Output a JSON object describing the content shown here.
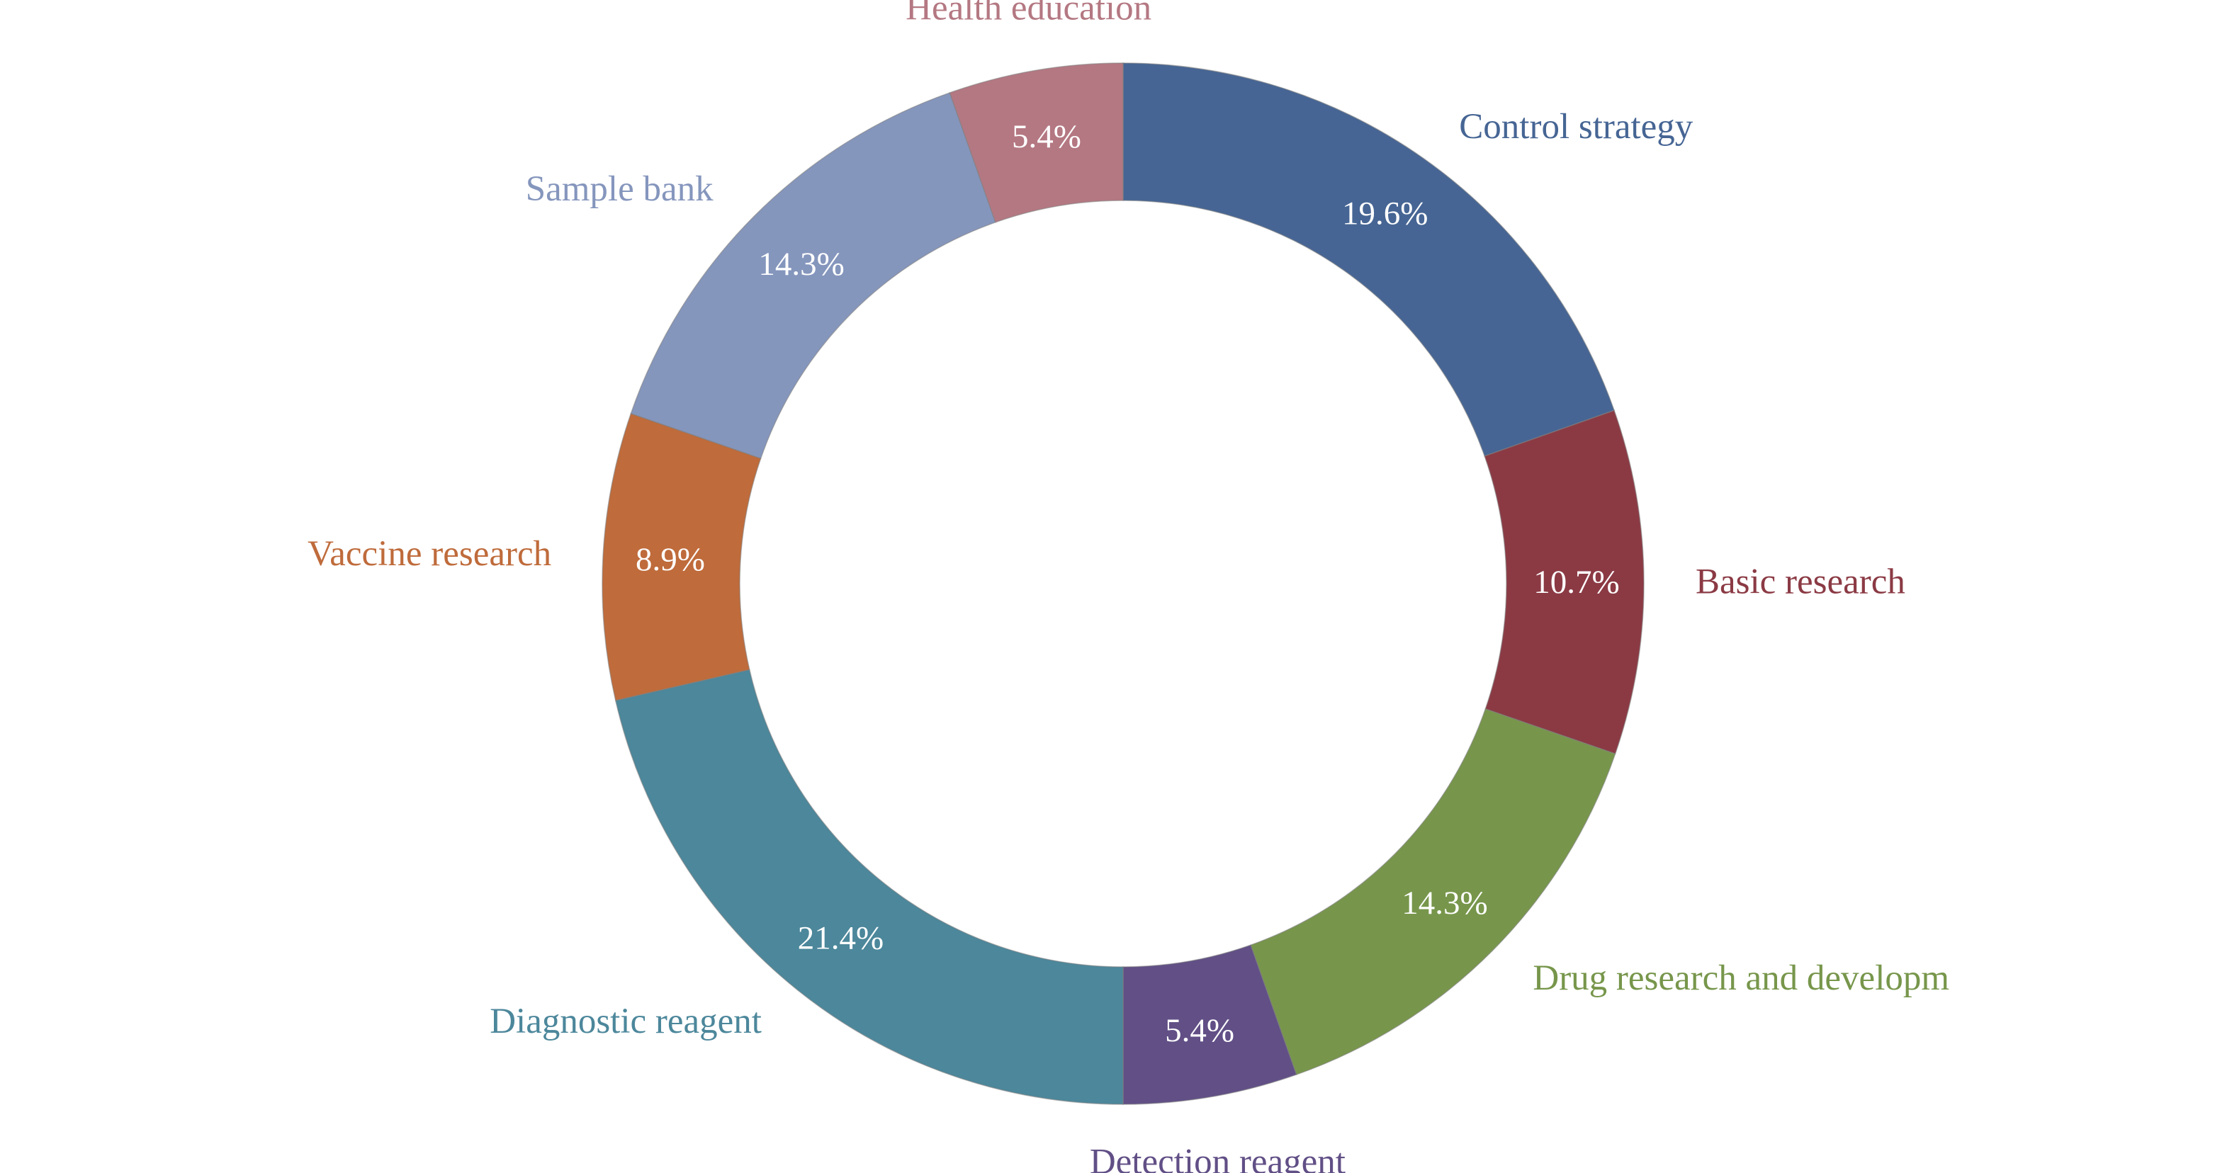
{
  "chart_data": {
    "type": "pie",
    "variant": "donut",
    "title": "",
    "legend": "none",
    "slices": [
      {
        "label": "Control strategy",
        "value": 19.6,
        "value_label": "19.6%",
        "color": "#466594"
      },
      {
        "label": "Basic research",
        "value": 10.7,
        "value_label": "10.7%",
        "color": "#8b3a44"
      },
      {
        "label": "Drug research and developm",
        "value": 14.3,
        "value_label": "14.3%",
        "color": "#77964b"
      },
      {
        "label": "Detection reagent",
        "value": 5.4,
        "value_label": "5.4%",
        "color": "#614f86"
      },
      {
        "label": "Diagnostic reagent",
        "value": 21.4,
        "value_label": "21.4%",
        "color": "#4c879b"
      },
      {
        "label": "Vaccine research",
        "value": 8.9,
        "value_label": "8.9%",
        "color": "#bf6b3b"
      },
      {
        "label": "Sample bank",
        "value": 14.3,
        "value_label": "14.3%",
        "color": "#8596bd"
      },
      {
        "label": "Health education",
        "value": 5.4,
        "value_label": "5.4%",
        "color": "#b47882"
      }
    ]
  }
}
